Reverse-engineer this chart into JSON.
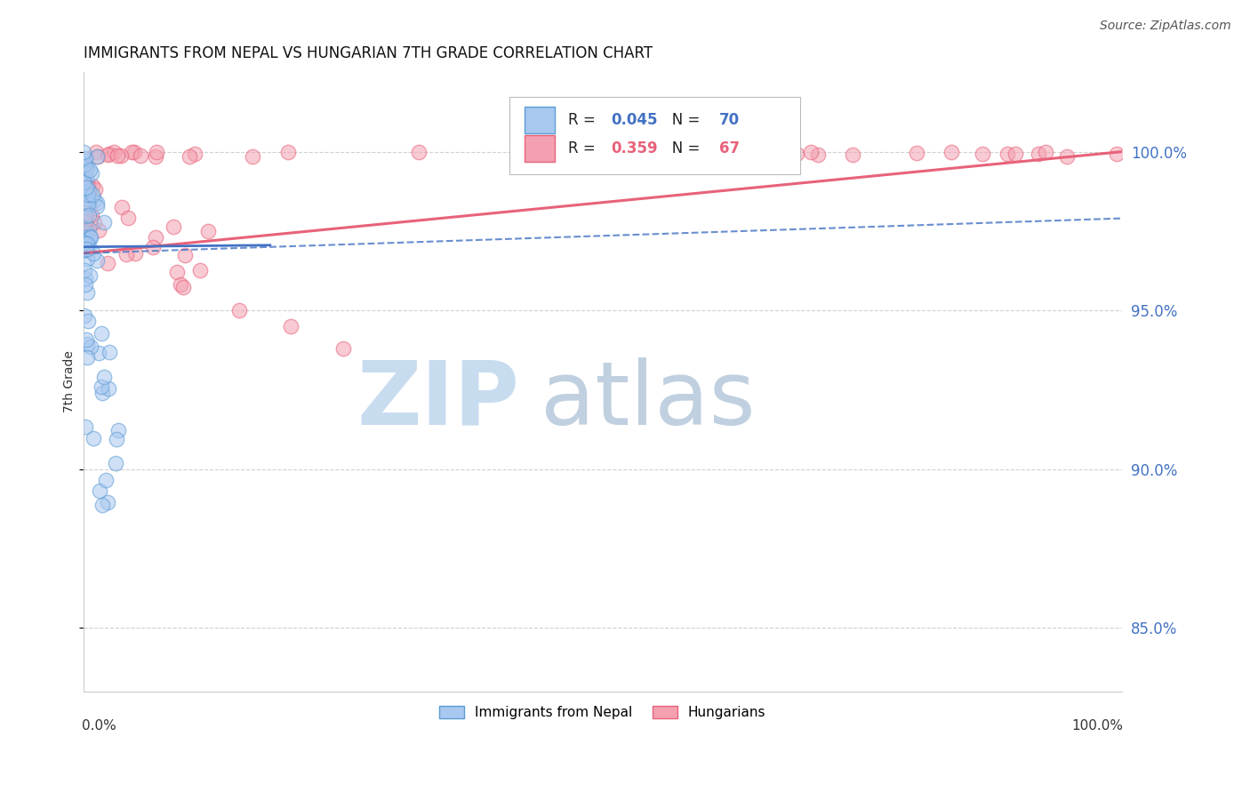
{
  "title": "IMMIGRANTS FROM NEPAL VS HUNGARIAN 7TH GRADE CORRELATION CHART",
  "source": "Source: ZipAtlas.com",
  "ylabel": "7th Grade",
  "r_nepal": 0.045,
  "n_nepal": 70,
  "r_hungarian": 0.359,
  "n_hungarian": 67,
  "nepal_fill_color": "#A8C8F0",
  "nepal_edge_color": "#5B9BD5",
  "hungarian_fill_color": "#F4A0B0",
  "hungarian_edge_color": "#E8627A",
  "nepal_line_color": "#4472C4",
  "hungarian_line_color": "#E8627A",
  "ytick_positions": [
    0.85,
    0.9,
    0.95,
    1.0
  ],
  "ytick_labels": [
    "85.0%",
    "90.0%",
    "95.0%",
    "100.0%"
  ],
  "ytick_color": "#4472C4",
  "xmin": 0.0,
  "xmax": 1.0,
  "ymin": 0.83,
  "ymax": 1.025,
  "background_color": "#ffffff",
  "grid_color": "#d0d0d0",
  "watermark_zip_color": "#C8DCF0",
  "watermark_atlas_color": "#C0D0E0"
}
